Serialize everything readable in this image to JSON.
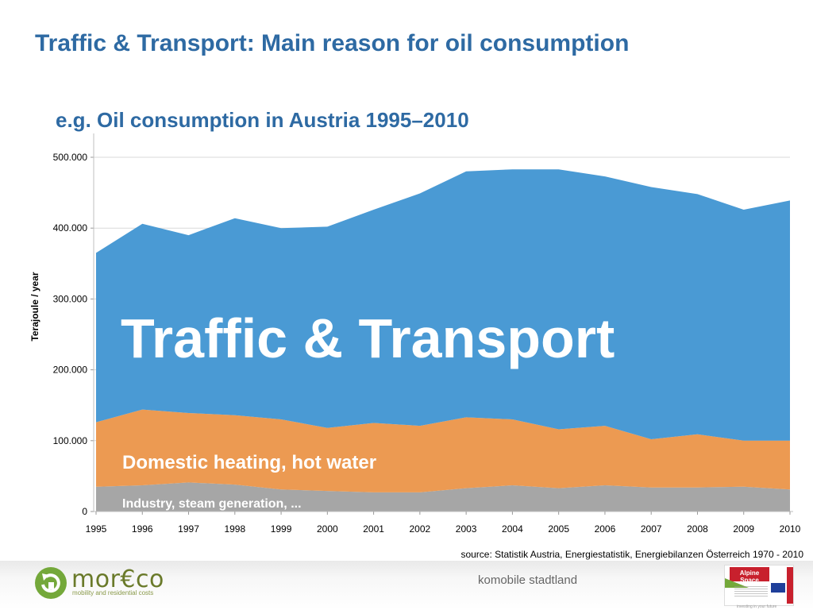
{
  "slide": {
    "title": "Traffic & Transport: Main reason for oil consumption",
    "subtitle": "e.g. Oil consumption in Austria 1995–2010",
    "source": "source: Statistik Austria, Energiestatistik, Energiebilanzen Österreich 1970 - 2010"
  },
  "footer": {
    "logo_text": "mor€co",
    "logo_tagline": "mobility and residential costs",
    "center_text": "komobile stadtland",
    "partner_logo_text": "Alpine Space",
    "partner_tagline": "investing in your future"
  },
  "chart_data": {
    "type": "area",
    "stacked": true,
    "title": "",
    "ylabel": "Terajoule / year",
    "xlabel": "",
    "x": [
      1995,
      1996,
      1997,
      1998,
      1999,
      2000,
      2001,
      2002,
      2003,
      2004,
      2005,
      2006,
      2007,
      2008,
      2009,
      2010
    ],
    "ylim": [
      0,
      500000
    ],
    "y_ticks": [
      0,
      100000,
      200000,
      300000,
      400000,
      500000
    ],
    "y_tick_labels": [
      "0",
      "100.000",
      "200.000",
      "300.000",
      "400.000",
      "500.000"
    ],
    "grid": "horizontal",
    "series": [
      {
        "name": "Industry, steam generation, ...",
        "color": "#a6a6a6",
        "values": [
          35000,
          37000,
          41000,
          38000,
          31000,
          29000,
          27000,
          27000,
          33000,
          37000,
          33000,
          37000,
          34000,
          34000,
          35000,
          31000
        ]
      },
      {
        "name": "Domestic heating, hot water",
        "color": "#ec9a52",
        "values": [
          91000,
          107000,
          98000,
          98000,
          99000,
          89000,
          98000,
          94000,
          100000,
          93000,
          83000,
          84000,
          68000,
          75000,
          65000,
          69000
        ]
      },
      {
        "name": "Traffic & Transport",
        "color": "#4a9ad4",
        "values": [
          239000,
          262000,
          251000,
          278000,
          270000,
          284000,
          301000,
          328000,
          347000,
          353000,
          367000,
          352000,
          356000,
          339000,
          326000,
          339000
        ]
      }
    ]
  }
}
